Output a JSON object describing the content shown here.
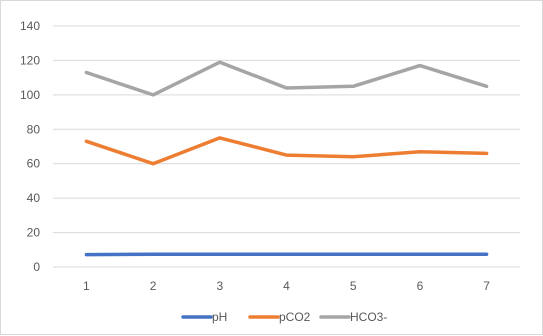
{
  "chart_data": {
    "type": "line",
    "title": "",
    "xlabel": "",
    "ylabel": "",
    "categories": [
      "1",
      "2",
      "3",
      "4",
      "5",
      "6",
      "7"
    ],
    "ylim": [
      0,
      140
    ],
    "yticks": [
      "0",
      "20",
      "40",
      "60",
      "80",
      "100",
      "120",
      "140"
    ],
    "grid": true,
    "legend_position": "bottom",
    "series": [
      {
        "name": "pH",
        "color": "#4472c4",
        "values": [
          7.2,
          7.4,
          7.4,
          7.4,
          7.4,
          7.4,
          7.4
        ]
      },
      {
        "name": "pCO2",
        "color": "#ed7d31",
        "values": [
          73,
          60,
          75,
          65,
          64,
          67,
          66
        ]
      },
      {
        "name": "HCO3-",
        "color": "#a5a5a5",
        "values": [
          113,
          100,
          119,
          104,
          105,
          117,
          105
        ]
      }
    ]
  }
}
